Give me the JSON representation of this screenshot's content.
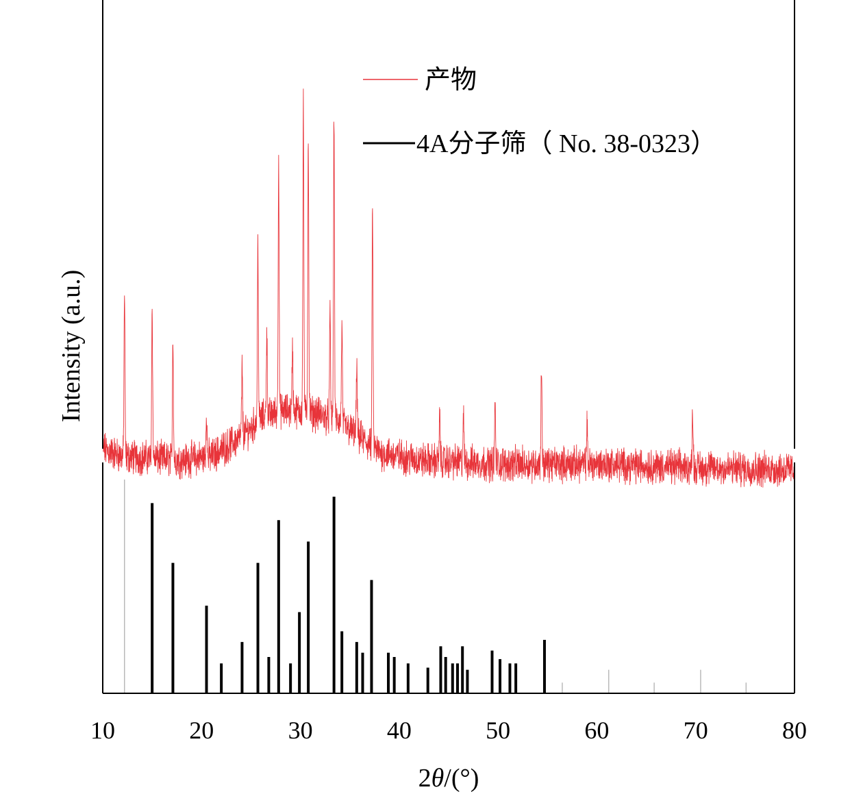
{
  "chart_data": {
    "type": "line",
    "title": "",
    "xlabel_prefix": "2",
    "xlabel_symbol": "θ",
    "xlabel_suffix": "/(°)",
    "ylabel": "Intensity (a.u.)",
    "xlim": [
      10,
      80
    ],
    "x_ticks": [
      10,
      20,
      30,
      40,
      50,
      60,
      70,
      80
    ],
    "legend_position": "top-center",
    "grid": false,
    "colors": {
      "product": "#e8343a",
      "reference": "#000000"
    },
    "series": [
      {
        "name": "产物",
        "kind": "pattern",
        "baseline_points": [
          [
            10,
            0.09
          ],
          [
            12,
            0.07
          ],
          [
            18,
            0.06
          ],
          [
            21,
            0.07
          ],
          [
            24,
            0.12
          ],
          [
            26,
            0.17
          ],
          [
            28,
            0.19
          ],
          [
            30,
            0.19
          ],
          [
            32,
            0.18
          ],
          [
            34,
            0.16
          ],
          [
            36,
            0.12
          ],
          [
            38,
            0.08
          ],
          [
            42,
            0.06
          ],
          [
            50,
            0.05
          ],
          [
            60,
            0.05
          ],
          [
            70,
            0.04
          ],
          [
            80,
            0.035
          ]
        ],
        "peaks": [
          {
            "x": 12.2,
            "y": 0.5
          },
          {
            "x": 15.0,
            "y": 0.47
          },
          {
            "x": 17.1,
            "y": 0.39
          },
          {
            "x": 20.5,
            "y": 0.19
          },
          {
            "x": 24.1,
            "y": 0.3
          },
          {
            "x": 25.7,
            "y": 0.64
          },
          {
            "x": 26.6,
            "y": 0.4
          },
          {
            "x": 27.8,
            "y": 0.86
          },
          {
            "x": 29.2,
            "y": 0.36
          },
          {
            "x": 30.3,
            "y": 0.99
          },
          {
            "x": 30.8,
            "y": 0.91
          },
          {
            "x": 33.0,
            "y": 0.44
          },
          {
            "x": 33.4,
            "y": 0.96
          },
          {
            "x": 34.2,
            "y": 0.41
          },
          {
            "x": 35.7,
            "y": 0.3
          },
          {
            "x": 37.3,
            "y": 0.73
          },
          {
            "x": 44.1,
            "y": 0.17
          },
          {
            "x": 46.5,
            "y": 0.18
          },
          {
            "x": 49.7,
            "y": 0.21
          },
          {
            "x": 54.4,
            "y": 0.31
          },
          {
            "x": 59.0,
            "y": 0.15
          },
          {
            "x": 69.7,
            "y": 0.2
          }
        ]
      },
      {
        "name": "4A分子筛（ No. 38-0323）",
        "kind": "sticks",
        "x": [
          12.2,
          15.0,
          17.1,
          20.5,
          22.0,
          24.1,
          25.7,
          26.8,
          27.8,
          29.0,
          29.9,
          30.8,
          33.4,
          34.2,
          35.7,
          36.3,
          37.2,
          38.9,
          39.5,
          40.9,
          42.9,
          44.2,
          44.7,
          45.4,
          45.9,
          46.4,
          46.9,
          49.4,
          50.2,
          51.2,
          51.8,
          54.7,
          56.5,
          61.2,
          65.8,
          70.5,
          75.1
        ],
        "y": [
          1.0,
          0.89,
          0.61,
          0.41,
          0.14,
          0.24,
          0.61,
          0.17,
          0.81,
          0.14,
          0.38,
          0.71,
          0.92,
          0.29,
          0.24,
          0.19,
          0.53,
          0.19,
          0.17,
          0.14,
          0.12,
          0.22,
          0.17,
          0.14,
          0.14,
          0.22,
          0.11,
          0.2,
          0.16,
          0.14,
          0.14,
          0.25,
          0.05,
          0.11,
          0.05,
          0.11,
          0.05
        ]
      }
    ]
  }
}
